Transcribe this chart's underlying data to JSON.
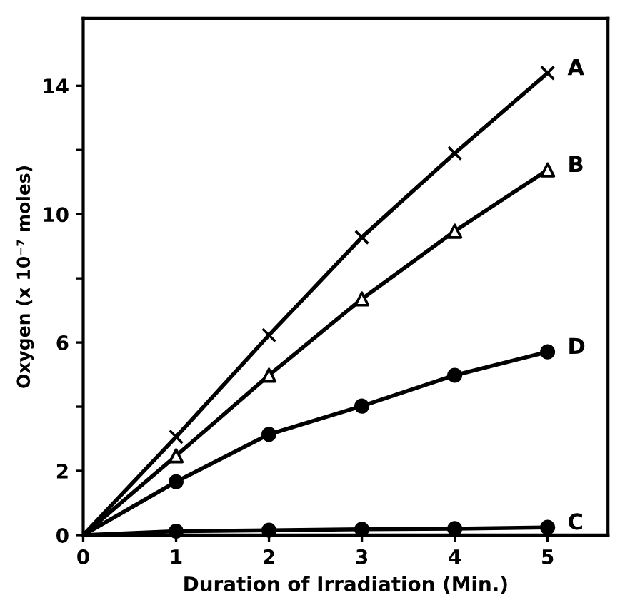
{
  "chart_data": {
    "type": "line",
    "xlabel": "Duration of Irradiation (Min.)",
    "ylabel": "Oxygen (x 10⁻⁷ moles)",
    "x": [
      0,
      1,
      2,
      3,
      4,
      5
    ],
    "series": [
      {
        "name": "A",
        "color": "#000000",
        "marker": "cross",
        "values": [
          0,
          3.06,
          6.23,
          9.28,
          11.9,
          14.4
        ]
      },
      {
        "name": "B",
        "color": "#000000",
        "marker": "triangle",
        "values": [
          0,
          2.47,
          4.98,
          7.36,
          9.47,
          11.38
        ]
      },
      {
        "name": "C",
        "color": "#000000",
        "marker": "circle",
        "values": [
          0,
          0.12,
          0.15,
          0.18,
          0.2,
          0.24
        ]
      },
      {
        "name": "D",
        "color": "#000000",
        "marker": "circle",
        "values": [
          0,
          1.66,
          3.14,
          4.02,
          4.98,
          5.71
        ]
      }
    ],
    "xlim": [
      0,
      5.65
    ],
    "ylim": [
      0,
      16.1
    ],
    "xticks": [
      0,
      1,
      2,
      3,
      4,
      5
    ],
    "yticks": [
      0,
      2,
      {
        "value": 4,
        "label": null
      },
      6,
      {
        "value": 8,
        "label": null
      },
      10,
      {
        "value": 12,
        "label": null
      },
      14
    ],
    "grid": false,
    "legend": false,
    "line_style": "solid"
  }
}
